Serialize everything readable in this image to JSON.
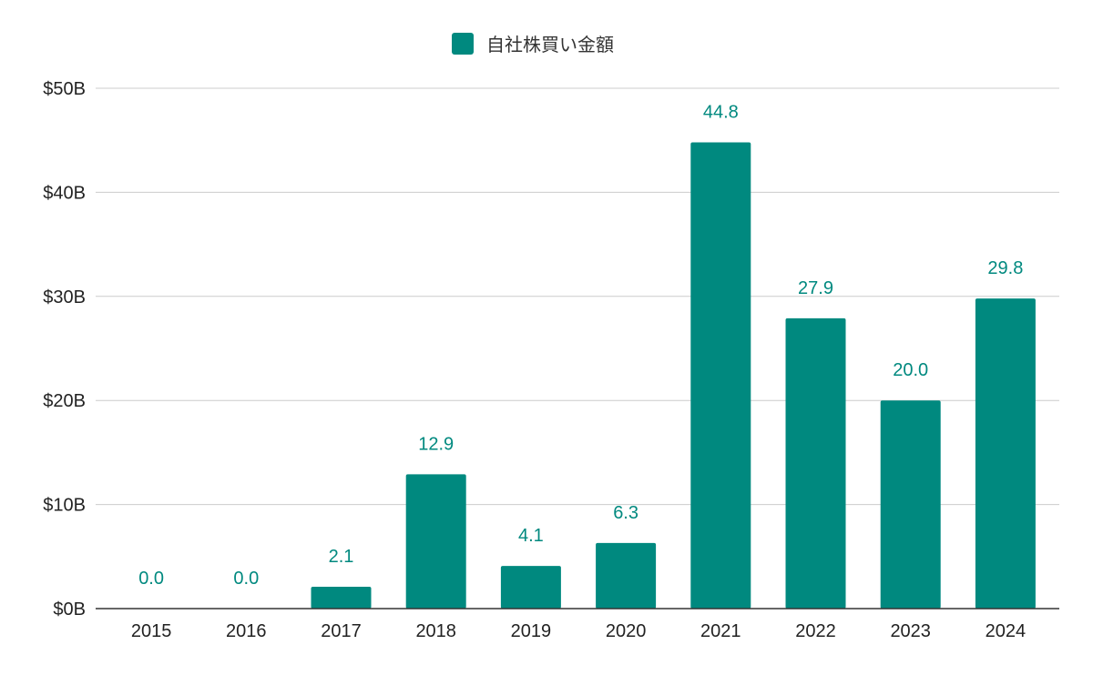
{
  "chart_data": {
    "type": "bar",
    "categories": [
      "2015",
      "2016",
      "2017",
      "2018",
      "2019",
      "2020",
      "2021",
      "2022",
      "2023",
      "2024"
    ],
    "series": [
      {
        "name": "自社株買い金額",
        "values": [
          0.0,
          0.0,
          2.1,
          12.9,
          4.1,
          6.3,
          44.8,
          27.9,
          20.0,
          29.8
        ],
        "data_labels": [
          "0.0",
          "0.0",
          "2.1",
          "12.9",
          "4.1",
          "6.3",
          "44.8",
          "27.9",
          "20.0",
          "29.8"
        ]
      }
    ],
    "ylim": [
      0,
      50
    ],
    "yticks": [
      0,
      10,
      20,
      30,
      40,
      50
    ],
    "ytick_labels": [
      "$0B",
      "$10B",
      "$20B",
      "$30B",
      "$40B",
      "$50B"
    ],
    "legend_position": "top-center",
    "grid": true,
    "colors": {
      "bar": "#00897f",
      "label": "#00897f",
      "grid": "#cccccc",
      "axis": "#333333"
    }
  }
}
